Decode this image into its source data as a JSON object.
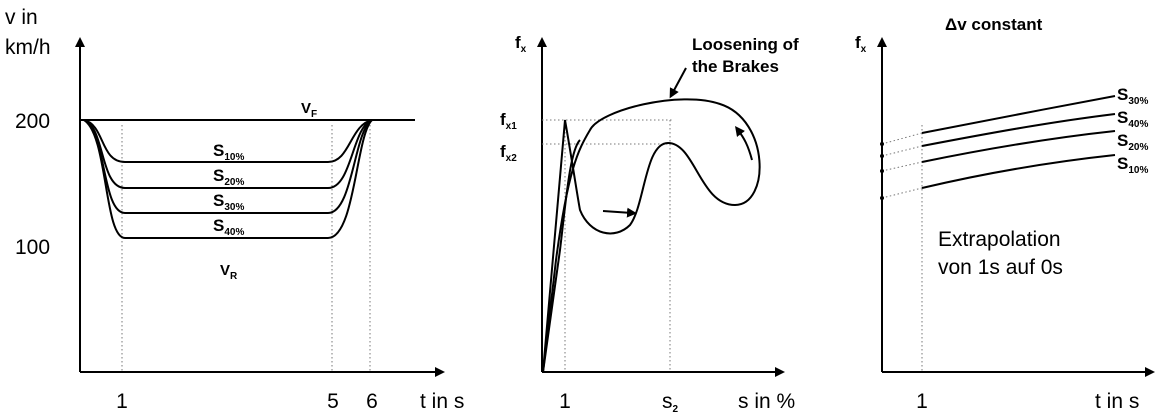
{
  "panel1": {
    "y_label_1": "v in",
    "y_label_2": "km/h",
    "y_ticks": [
      "200",
      "100"
    ],
    "v_f": {
      "main": "V",
      "sub": "F"
    },
    "v_r": {
      "main": "V",
      "sub": "R"
    },
    "curves": [
      {
        "main": "S",
        "sub": "10%"
      },
      {
        "main": "S",
        "sub": "20%"
      },
      {
        "main": "S",
        "sub": "30%"
      },
      {
        "main": "S",
        "sub": "40%"
      }
    ],
    "x_ticks": [
      "1",
      "5",
      "6"
    ],
    "x_label": "t in s"
  },
  "panel2": {
    "y_label": {
      "main": "f",
      "sub": "x"
    },
    "f_x1": {
      "main": "f",
      "sub": "x1"
    },
    "f_x2": {
      "main": "f",
      "sub": "x2"
    },
    "annotation_1": "Loosening of",
    "annotation_2": "the Brakes",
    "x_tick_1": "1",
    "x_tick_s2": {
      "main": "s",
      "sub": "2"
    },
    "x_label": "s in %"
  },
  "panel3": {
    "y_label": {
      "main": "f",
      "sub": "x"
    },
    "title": "Δv constant",
    "curves": [
      {
        "main": "S",
        "sub": "30%"
      },
      {
        "main": "S",
        "sub": "40%"
      },
      {
        "main": "S",
        "sub": "20%"
      },
      {
        "main": "S",
        "sub": "10%"
      }
    ],
    "note_1": "Extrapolation",
    "note_2": "von 1s auf 0s",
    "x_tick": "1",
    "x_label": "t in s"
  }
}
